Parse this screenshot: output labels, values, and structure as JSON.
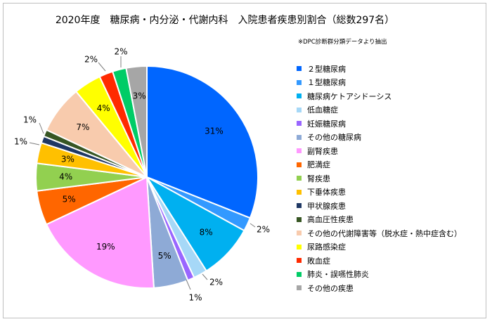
{
  "chart_data": {
    "type": "pie",
    "title": "2020年度　糖尿病・内分泌・代謝内科　入院患者疾患別割合（総数297名）",
    "subtitle": "※DPC診断群分類データより抽出",
    "legend_position": "right",
    "series": [
      {
        "name": "２型糖尿病",
        "value": 31,
        "label": "31%",
        "color": "#0066ff"
      },
      {
        "name": "１型糖尿病",
        "value": 2,
        "label": "2%",
        "color": "#3399ff"
      },
      {
        "name": "糖尿病ケトアシドーシス",
        "value": 8,
        "label": "8%",
        "color": "#00b0f0"
      },
      {
        "name": "低血糖症",
        "value": 2,
        "label": "2%",
        "color": "#a6d8f7"
      },
      {
        "name": "妊娠糖尿病",
        "value": 1,
        "label": "1%",
        "color": "#9966ff"
      },
      {
        "name": "その他の糖尿病",
        "value": 5,
        "label": "5%",
        "color": "#8eaad6"
      },
      {
        "name": "副腎疾患",
        "value": 19,
        "label": "19%",
        "color": "#ff99ff"
      },
      {
        "name": "肥満症",
        "value": 5,
        "label": "5%",
        "color": "#ff6600"
      },
      {
        "name": "腎疾患",
        "value": 4,
        "label": "4%",
        "color": "#92d050"
      },
      {
        "name": "下垂体疾患",
        "value": 3,
        "label": "3%",
        "color": "#ffc000"
      },
      {
        "name": "甲状腺疾患",
        "value": 1,
        "label": "1%",
        "color": "#1f3864"
      },
      {
        "name": "高血圧性疾患",
        "value": 1,
        "label": "1%",
        "color": "#375623"
      },
      {
        "name": "その他の代謝障害等（脱水症・熱中症含む）",
        "value": 7,
        "label": "7%",
        "color": "#f8cbad"
      },
      {
        "name": "尿路感染症",
        "value": 4,
        "label": "4%",
        "color": "#ffff00"
      },
      {
        "name": "敗血症",
        "value": 2,
        "label": "2%",
        "color": "#ff2a00"
      },
      {
        "name": "肺炎・誤嚥性肺炎",
        "value": 2,
        "label": "2%",
        "color": "#00cc66"
      },
      {
        "name": "その他の疾患",
        "value": 3,
        "label": "3%",
        "color": "#a6a6a6"
      }
    ]
  }
}
